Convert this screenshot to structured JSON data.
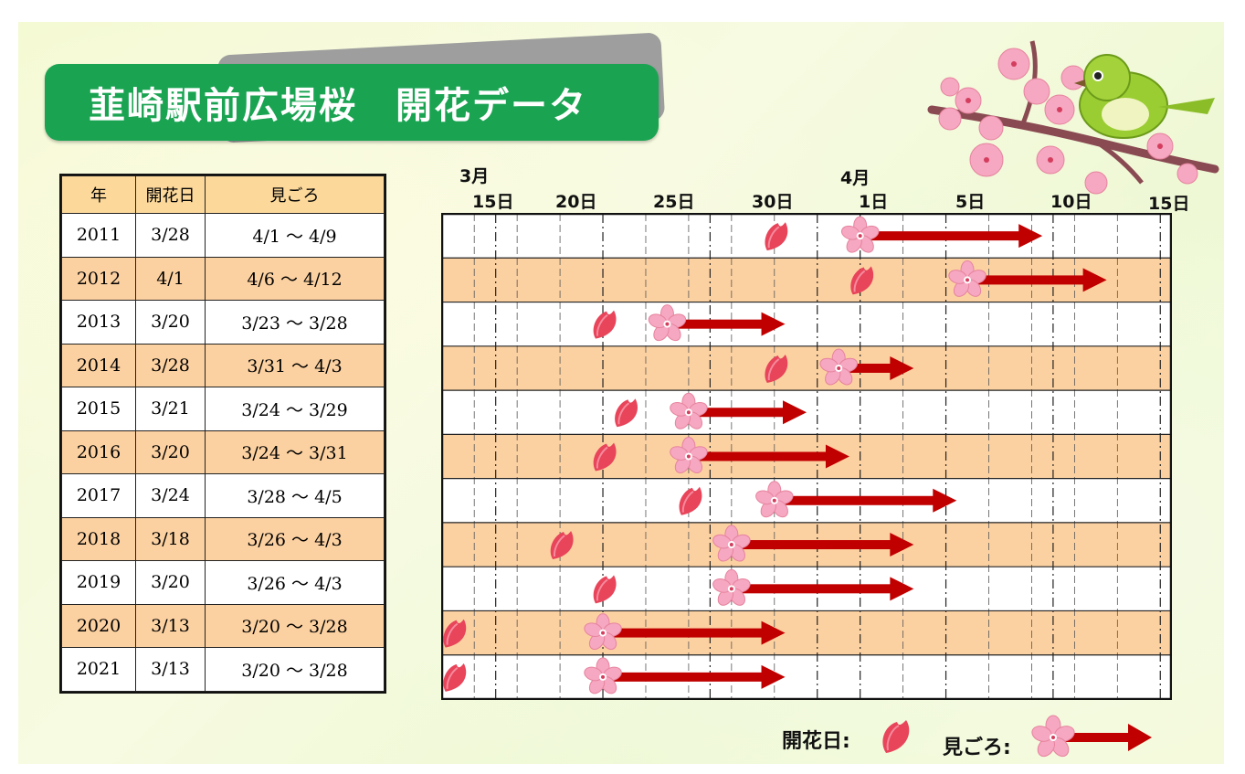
{
  "title": "韮崎駅前広場桜　開花データ",
  "table": {
    "headers": [
      "年",
      "開花日",
      "見ごろ"
    ],
    "rows": [
      {
        "year": "2011",
        "bloom": "3/28",
        "peak": "4/1 ～ 4/9"
      },
      {
        "year": "2012",
        "bloom": "4/1",
        "peak": "4/6 ～ 4/12"
      },
      {
        "year": "2013",
        "bloom": "3/20",
        "peak": "3/23 ～ 3/28"
      },
      {
        "year": "2014",
        "bloom": "3/28",
        "peak": "3/31 ～ 4/3"
      },
      {
        "year": "2015",
        "bloom": "3/21",
        "peak": "3/24 ～ 3/29"
      },
      {
        "year": "2016",
        "bloom": "3/20",
        "peak": "3/24 ～ 3/31"
      },
      {
        "year": "2017",
        "bloom": "3/24",
        "peak": "3/28 ～ 4/5"
      },
      {
        "year": "2018",
        "bloom": "3/18",
        "peak": "3/26 ～ 4/3"
      },
      {
        "year": "2019",
        "bloom": "3/20",
        "peak": "3/26 ～ 4/3"
      },
      {
        "year": "2020",
        "bloom": "3/13",
        "peak": "3/20 ～ 3/28"
      },
      {
        "year": "2021",
        "bloom": "3/13",
        "peak": "3/20 ～ 3/28"
      }
    ]
  },
  "axis": {
    "month_march": "3月",
    "month_april": "4月",
    "ticks": [
      "15日",
      "20日",
      "25日",
      "30日",
      "1日",
      "5日",
      "10日",
      "15日"
    ]
  },
  "chart_data": {
    "type": "gantt",
    "x_range": [
      "3/13",
      "4/15"
    ],
    "categories": [
      "2011",
      "2012",
      "2013",
      "2014",
      "2015",
      "2016",
      "2017",
      "2018",
      "2019",
      "2020",
      "2021"
    ],
    "bloom_dates": [
      "3/28",
      "4/1",
      "3/20",
      "3/28",
      "3/21",
      "3/20",
      "3/24",
      "3/18",
      "3/20",
      "3/13",
      "3/13"
    ],
    "peak_ranges": [
      [
        "4/1",
        "4/9"
      ],
      [
        "4/6",
        "4/12"
      ],
      [
        "3/23",
        "3/28"
      ],
      [
        "3/31",
        "4/3"
      ],
      [
        "3/24",
        "3/29"
      ],
      [
        "3/24",
        "3/31"
      ],
      [
        "3/28",
        "4/5"
      ],
      [
        "3/26",
        "4/3"
      ],
      [
        "3/26",
        "4/3"
      ],
      [
        "3/20",
        "3/28"
      ],
      [
        "3/20",
        "3/28"
      ]
    ],
    "grid": true,
    "colors": {
      "row_even": "#fcd1a1",
      "row_odd": "#ffffff",
      "arrow": "#c00000",
      "petal": "#e8445a",
      "flower": "#f6a7c1"
    }
  },
  "legend": {
    "bloom_label": "開花日:",
    "peak_label": "見ごろ:"
  },
  "colors": {
    "title_bg": "#1aa452",
    "header_bg": "#fcd99b"
  }
}
